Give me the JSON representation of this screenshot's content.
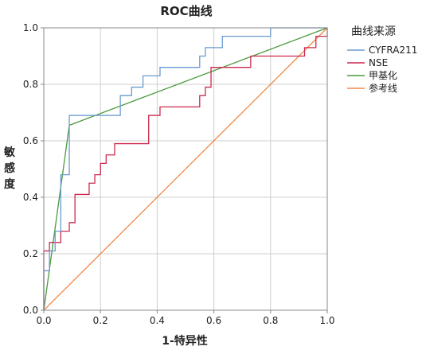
{
  "chart_data": {
    "type": "line",
    "title": "ROC曲线",
    "xlabel": "1-特异性",
    "ylabel": "敏感度",
    "xlim": [
      0,
      1
    ],
    "ylim": [
      0,
      1
    ],
    "xticks": [
      "0.0",
      "0.2",
      "0.4",
      "0.6",
      "0.8",
      "1.0"
    ],
    "yticks": [
      "0.0",
      "0.2",
      "0.4",
      "0.6",
      "0.8",
      "1.0"
    ],
    "grid": true,
    "legend": {
      "title": "曲线来源",
      "placement": "top-right"
    },
    "series": [
      {
        "name": "CYFRA211",
        "color": "#6a9bd0",
        "x": [
          0,
          0,
          0.02,
          0.02,
          0.04,
          0.04,
          0.06,
          0.06,
          0.09,
          0.09,
          0.27,
          0.27,
          0.31,
          0.31,
          0.35,
          0.35,
          0.41,
          0.41,
          0.55,
          0.55,
          0.57,
          0.57,
          0.63,
          0.63,
          0.8,
          0.8,
          1
        ],
        "y": [
          0,
          0.14,
          0.14,
          0.21,
          0.21,
          0.28,
          0.28,
          0.48,
          0.48,
          0.69,
          0.69,
          0.76,
          0.76,
          0.79,
          0.79,
          0.83,
          0.83,
          0.86,
          0.86,
          0.9,
          0.9,
          0.93,
          0.93,
          0.97,
          0.97,
          1,
          1
        ]
      },
      {
        "name": "NSE",
        "color": "#cc2a4d",
        "x": [
          0,
          0,
          0.02,
          0.02,
          0.04,
          0.04,
          0.06,
          0.06,
          0.09,
          0.09,
          0.11,
          0.11,
          0.14,
          0.14,
          0.16,
          0.16,
          0.18,
          0.18,
          0.2,
          0.2,
          0.22,
          0.22,
          0.25,
          0.25,
          0.29,
          0.29,
          0.37,
          0.37,
          0.41,
          0.41,
          0.45,
          0.45,
          0.55,
          0.55,
          0.57,
          0.57,
          0.59,
          0.59,
          0.73,
          0.73,
          0.92,
          0.92,
          0.94,
          0.94,
          0.96,
          0.96,
          1,
          1
        ],
        "y": [
          0,
          0.21,
          0.21,
          0.24,
          0.24,
          0.24,
          0.24,
          0.28,
          0.28,
          0.31,
          0.31,
          0.41,
          0.41,
          0.41,
          0.41,
          0.45,
          0.45,
          0.48,
          0.48,
          0.52,
          0.52,
          0.55,
          0.55,
          0.59,
          0.59,
          0.59,
          0.59,
          0.69,
          0.69,
          0.72,
          0.72,
          0.72,
          0.72,
          0.76,
          0.76,
          0.79,
          0.79,
          0.86,
          0.86,
          0.9,
          0.9,
          0.93,
          0.93,
          0.93,
          0.93,
          0.97,
          0.97,
          1
        ]
      },
      {
        "name": "甲基化",
        "color": "#4a9a3c",
        "x": [
          0,
          0.09,
          1
        ],
        "y": [
          0,
          0.655,
          1
        ]
      },
      {
        "name": "参考线",
        "color": "#f0894a",
        "x": [
          0,
          1
        ],
        "y": [
          0,
          1
        ]
      }
    ]
  }
}
